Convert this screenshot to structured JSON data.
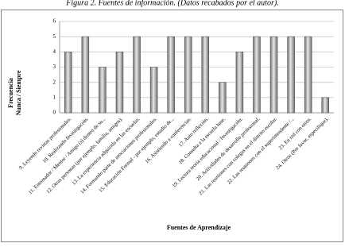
{
  "chart_data": {
    "type": "bar",
    "title": "Figura 2. Fuentes de información. (Datos recabados por el autor).",
    "ylabel": [
      "Frecuencia",
      "Nunca / Siempre"
    ],
    "xlabel": "Fuentes de Aprendizaje",
    "categories": [
      "9. Leyendo revistas profesionales.",
      "10. Realizando Investigación.",
      "11. Entrenador / Mentor / Amigo (s) dentro de su...",
      "12. Otras personas (por ejemplo, familia, amigos).",
      "13. La experiencia adquirida en las escuelas.",
      "14. Formando parte de asociaciones profesionales.",
      "15. Educación Formal - por ejemplo, estudio de...",
      "16. Asistiendo a conferencias.",
      "17. Auto reflexión.",
      "18. Consulta a la escuela base.",
      "19. Lectura teoría educacional / Investigación.",
      "20. Actividades de desarrollo profesional.",
      "21. Las reuniones con colegas en el distrito escolar.",
      "22. Las reuniones con el superintendente /...",
      "23. En red con otros.",
      "24. Otros (Por favor, especifique)."
    ],
    "values": [
      4,
      5,
      3,
      4,
      5,
      3,
      5,
      5,
      5,
      2,
      4,
      5,
      5,
      5,
      5,
      1
    ],
    "color": "#6e6e6e",
    "ylim": [
      0,
      6
    ],
    "yticks": [
      0,
      1,
      2,
      3,
      4,
      5,
      6
    ],
    "grid": true
  }
}
